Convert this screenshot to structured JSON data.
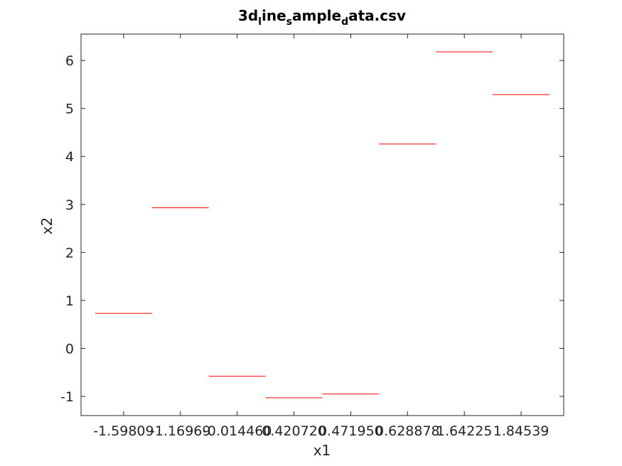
{
  "chart_data": {
    "type": "bar",
    "title_parts": [
      "3d",
      "l",
      "ine",
      "s",
      "ample",
      "d",
      "ata.csv"
    ],
    "xlabel": "x1",
    "ylabel": "x2",
    "categories": [
      "-1.59809",
      "-1.16969",
      "-0.014460",
      "0.420720",
      "0.471950",
      "0.628878",
      "1.64225",
      "1.84539"
    ],
    "values": [
      0.73,
      2.93,
      -0.58,
      -1.03,
      -0.95,
      4.26,
      6.18,
      5.29
    ],
    "ylim": [
      -1.4,
      6.55
    ],
    "yticks": [
      -1,
      0,
      1,
      2,
      3,
      4,
      5,
      6
    ],
    "series_color": "#ff0000",
    "axis_color": "#262626",
    "grid": false
  }
}
